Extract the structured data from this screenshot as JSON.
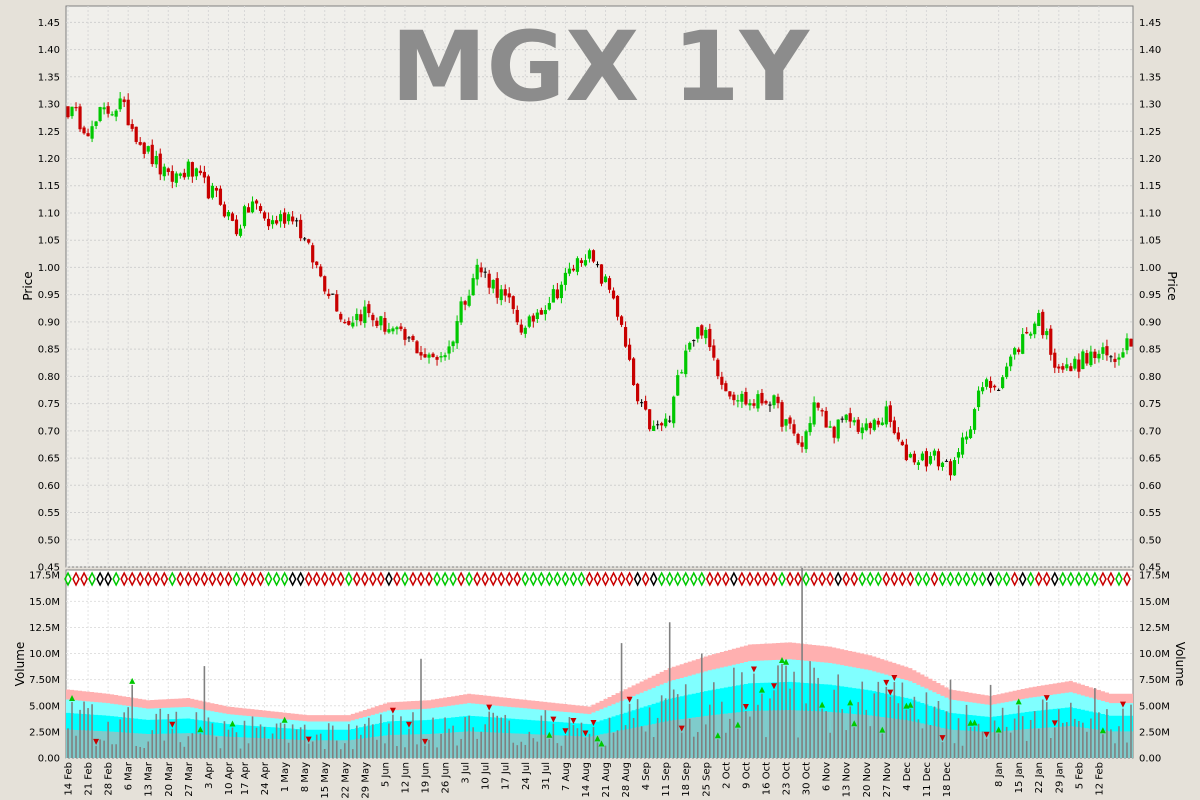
{
  "chart_data": {
    "type": "ohlc",
    "title": "MGX 1Y",
    "ylabel": "Price",
    "ylim": [
      0.45,
      1.48
    ],
    "yticks": [
      "0.45",
      "0.50",
      "0.55",
      "0.60",
      "0.65",
      "0.70",
      "0.75",
      "0.80",
      "0.85",
      "0.90",
      "0.95",
      "1.00",
      "1.05",
      "1.10",
      "1.15",
      "1.20",
      "1.25",
      "1.30",
      "1.35",
      "1.40",
      "1.45"
    ],
    "colors": {
      "up": "#00c800",
      "down": "#c80000",
      "flat": "#000000",
      "band_outer": "#ffb0b0",
      "band_mid": "#80ffff",
      "band_inner": "#00ffff",
      "volume_bar": "#808080"
    },
    "grid": true,
    "anchors": [
      [
        0,
        1.29
      ],
      [
        6,
        1.25
      ],
      [
        8,
        1.28
      ],
      [
        13,
        1.3
      ],
      [
        19,
        1.22
      ],
      [
        25,
        1.16
      ],
      [
        30,
        1.18
      ],
      [
        34,
        1.15
      ],
      [
        38,
        1.12
      ],
      [
        42,
        1.07
      ],
      [
        46,
        1.12
      ],
      [
        50,
        1.08
      ],
      [
        56,
        1.1
      ],
      [
        60,
        1.03
      ],
      [
        64,
        0.97
      ],
      [
        66,
        0.95
      ],
      [
        69,
        0.9
      ],
      [
        74,
        0.92
      ],
      [
        77,
        0.9
      ],
      [
        80,
        0.89
      ],
      [
        83,
        0.87
      ],
      [
        86,
        0.86
      ],
      [
        90,
        0.83
      ],
      [
        95,
        0.85
      ],
      [
        98,
        0.93
      ],
      [
        102,
        1.0
      ],
      [
        106,
        0.97
      ],
      [
        110,
        0.93
      ],
      [
        114,
        0.88
      ],
      [
        117,
        0.92
      ],
      [
        121,
        0.95
      ],
      [
        126,
        1.0
      ],
      [
        129,
        1.03
      ],
      [
        133,
        0.98
      ],
      [
        136,
        0.95
      ],
      [
        139,
        0.85
      ],
      [
        142,
        0.75
      ],
      [
        146,
        0.7
      ],
      [
        150,
        0.72
      ],
      [
        154,
        0.86
      ],
      [
        158,
        0.89
      ],
      [
        160,
        0.85
      ],
      [
        164,
        0.78
      ],
      [
        170,
        0.75
      ],
      [
        175,
        0.76
      ],
      [
        180,
        0.7
      ],
      [
        183,
        0.67
      ],
      [
        186,
        0.75
      ],
      [
        190,
        0.7
      ],
      [
        195,
        0.72
      ],
      [
        199,
        0.7
      ],
      [
        204,
        0.73
      ],
      [
        208,
        0.66
      ],
      [
        212,
        0.65
      ],
      [
        216,
        0.65
      ],
      [
        221,
        0.63
      ],
      [
        224,
        0.7
      ],
      [
        228,
        0.78
      ],
      [
        232,
        0.79
      ],
      [
        235,
        0.83
      ],
      [
        238,
        0.87
      ],
      [
        242,
        0.91
      ],
      [
        246,
        0.83
      ],
      [
        249,
        0.81
      ],
      [
        253,
        0.83
      ],
      [
        257,
        0.84
      ],
      [
        261,
        0.83
      ],
      [
        263,
        0.86
      ],
      [
        265,
        0.87
      ]
    ]
  },
  "volume_panel": {
    "ylabel": "Volume",
    "ylim": [
      0,
      18000000
    ],
    "yticks": [
      "0.00",
      "2.50M",
      "5.00M",
      "7.50M",
      "10.0M",
      "12.5M",
      "15.0M",
      "17.5M"
    ],
    "anchors": [
      [
        0,
        3.2
      ],
      [
        10,
        3.0
      ],
      [
        20,
        2.7
      ],
      [
        30,
        2.8
      ],
      [
        40,
        2.4
      ],
      [
        50,
        2.2
      ],
      [
        60,
        2.0
      ],
      [
        70,
        2.0
      ],
      [
        80,
        2.6
      ],
      [
        90,
        2.7
      ],
      [
        100,
        3.0
      ],
      [
        110,
        2.8
      ],
      [
        120,
        2.6
      ],
      [
        130,
        2.4
      ],
      [
        140,
        3.3
      ],
      [
        150,
        4.2
      ],
      [
        160,
        4.8
      ],
      [
        170,
        5.3
      ],
      [
        180,
        5.4
      ],
      [
        190,
        5.2
      ],
      [
        200,
        4.8
      ],
      [
        210,
        4.2
      ],
      [
        220,
        3.2
      ],
      [
        230,
        2.9
      ],
      [
        240,
        3.3
      ],
      [
        250,
        3.6
      ],
      [
        260,
        3.0
      ],
      [
        265,
        3.0
      ]
    ],
    "spikes": [
      [
        16,
        7
      ],
      [
        34,
        8.8
      ],
      [
        88,
        9.5
      ],
      [
        138,
        11
      ],
      [
        148,
        6
      ],
      [
        150,
        13
      ],
      [
        158,
        10
      ],
      [
        178,
        9
      ],
      [
        183,
        18.2
      ],
      [
        192,
        8
      ],
      [
        220,
        7.5
      ],
      [
        230,
        7
      ],
      [
        243,
        5.6
      ],
      [
        256,
        6.7
      ]
    ]
  },
  "x_axis": {
    "n_days": 266,
    "labels": [
      {
        "text": "14 Feb",
        "i": 0
      },
      {
        "text": "21 Feb",
        "i": 5
      },
      {
        "text": "28 Feb",
        "i": 10
      },
      {
        "text": "6 Mar",
        "i": 15
      },
      {
        "text": "13 Mar",
        "i": 20
      },
      {
        "text": "20 Mar",
        "i": 25
      },
      {
        "text": "27 Mar",
        "i": 30
      },
      {
        "text": "3 Apr",
        "i": 35
      },
      {
        "text": "10 Apr",
        "i": 40
      },
      {
        "text": "17 Apr",
        "i": 44
      },
      {
        "text": "24 Apr",
        "i": 49
      },
      {
        "text": "1 May",
        "i": 54
      },
      {
        "text": "8 May",
        "i": 59
      },
      {
        "text": "15 May",
        "i": 64
      },
      {
        "text": "22 May",
        "i": 69
      },
      {
        "text": "29 May",
        "i": 74
      },
      {
        "text": "5 Jun",
        "i": 79
      },
      {
        "text": "12 Jun",
        "i": 84
      },
      {
        "text": "19 Jun",
        "i": 89
      },
      {
        "text": "26 Jun",
        "i": 94
      },
      {
        "text": "3 Jul",
        "i": 99
      },
      {
        "text": "10 Jul",
        "i": 104
      },
      {
        "text": "17 Jul",
        "i": 109
      },
      {
        "text": "24 Jul",
        "i": 114
      },
      {
        "text": "31 Jul",
        "i": 119
      },
      {
        "text": "7 Aug",
        "i": 124
      },
      {
        "text": "14 Aug",
        "i": 129
      },
      {
        "text": "21 Aug",
        "i": 134
      },
      {
        "text": "28 Aug",
        "i": 139
      },
      {
        "text": "4 Sep",
        "i": 144
      },
      {
        "text": "11 Sep",
        "i": 149
      },
      {
        "text": "18 Sep",
        "i": 154
      },
      {
        "text": "25 Sep",
        "i": 159
      },
      {
        "text": "2 Oct",
        "i": 164
      },
      {
        "text": "9 Oct",
        "i": 169
      },
      {
        "text": "16 Oct",
        "i": 174
      },
      {
        "text": "23 Oct",
        "i": 179
      },
      {
        "text": "30 Oct",
        "i": 184
      },
      {
        "text": "6 Nov",
        "i": 189
      },
      {
        "text": "13 Nov",
        "i": 194
      },
      {
        "text": "20 Nov",
        "i": 199
      },
      {
        "text": "27 Nov",
        "i": 204
      },
      {
        "text": "4 Dec",
        "i": 209
      },
      {
        "text": "11 Dec",
        "i": 214
      },
      {
        "text": "18 Dec",
        "i": 219
      },
      {
        "text": "8 Jan",
        "i": 232
      },
      {
        "text": "15 Jan",
        "i": 237
      },
      {
        "text": "22 Jan",
        "i": 242
      },
      {
        "text": "29 Jan",
        "i": 247
      },
      {
        "text": "5 Feb",
        "i": 252
      },
      {
        "text": "12 Feb",
        "i": 257
      }
    ]
  }
}
